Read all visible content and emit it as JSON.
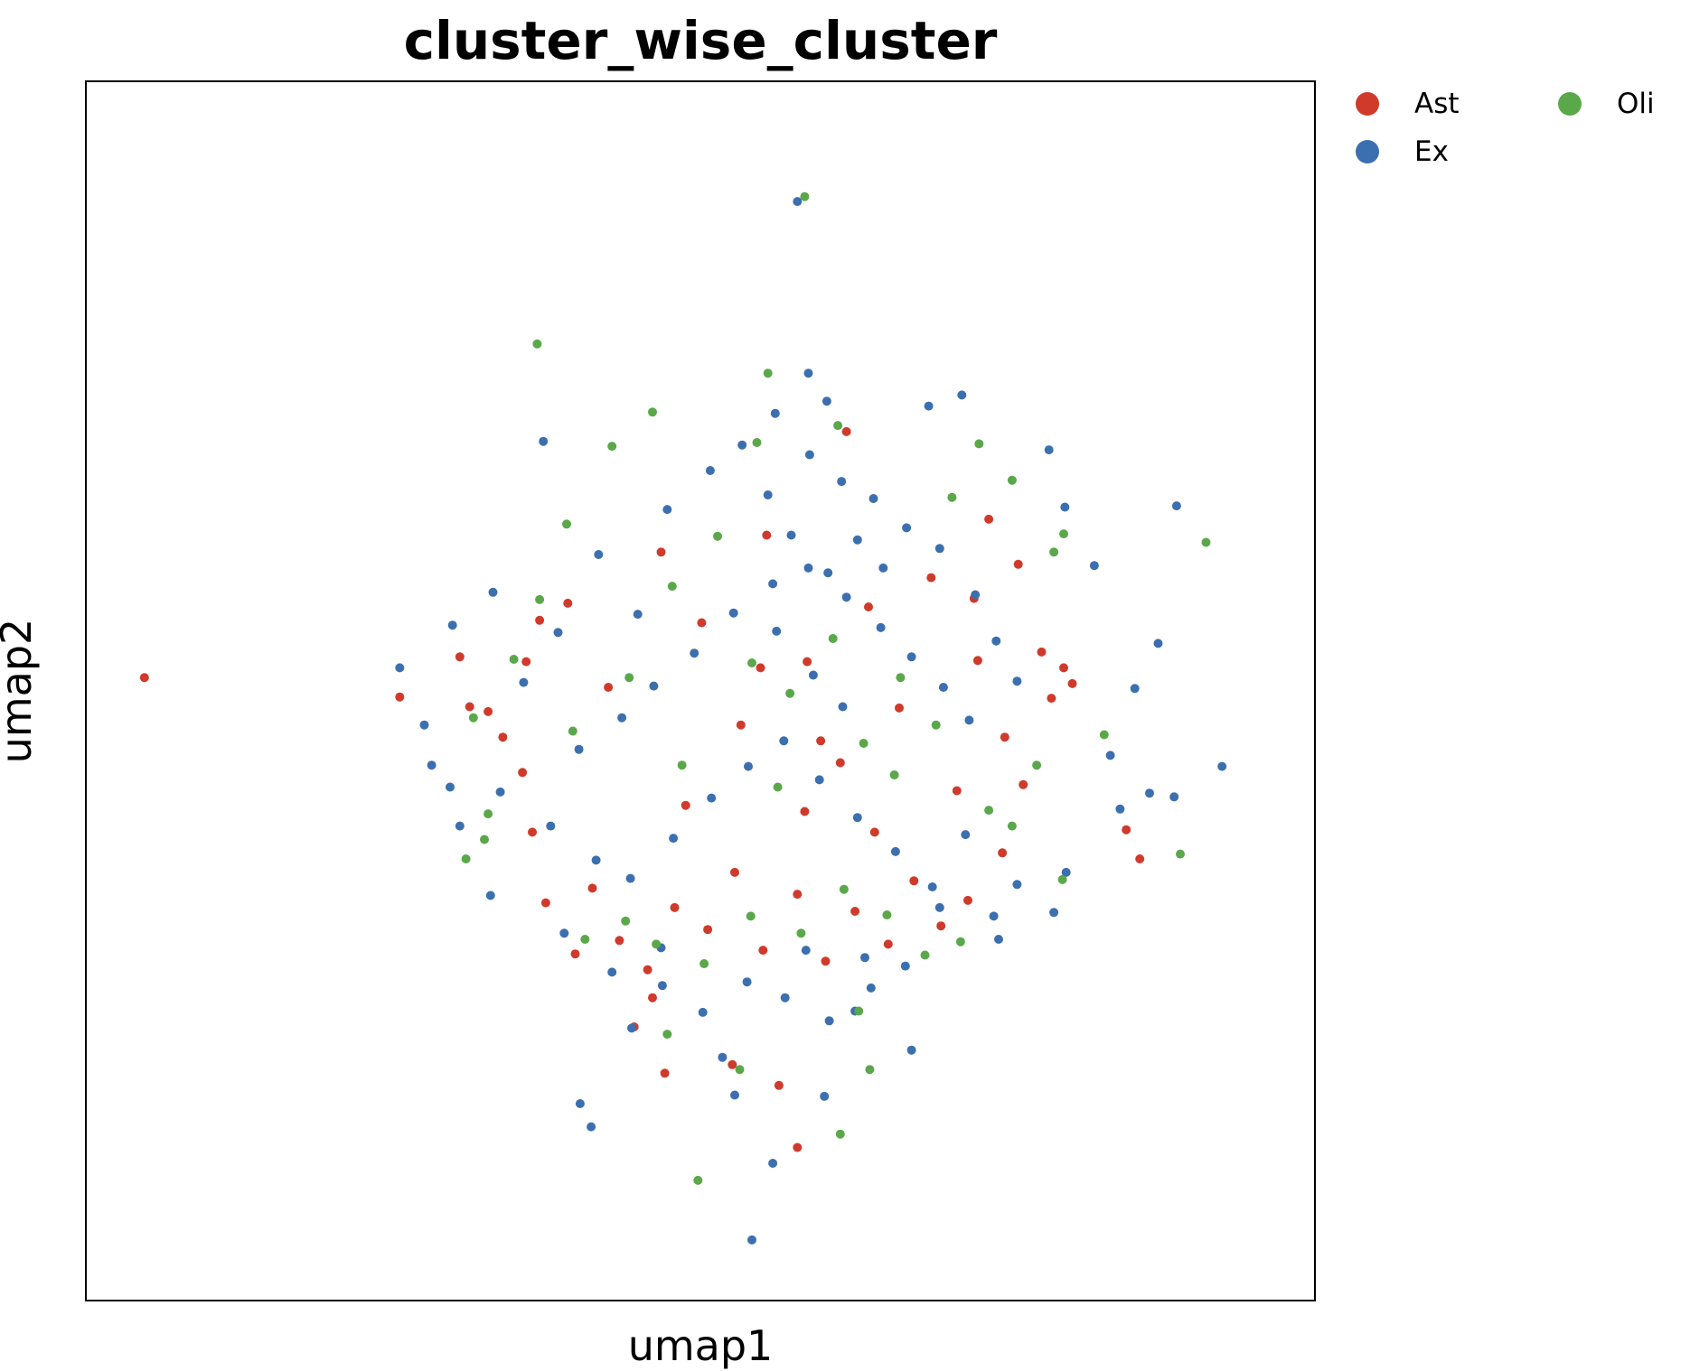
{
  "chart_data": {
    "type": "scatter",
    "title": "cluster_wise_cluster",
    "xlabel": "umap1",
    "ylabel": "umap2",
    "xlim": [
      0,
      100
    ],
    "ylim": [
      0,
      100
    ],
    "grid": false,
    "legend": {
      "placement": "outside-top-right",
      "columns": 2,
      "entries": [
        {
          "name": "Ast",
          "color": "#d03a2b"
        },
        {
          "name": "Ex",
          "color": "#3c6fb0"
        },
        {
          "name": "Oli",
          "color": "#5aa84a"
        }
      ]
    },
    "series": [
      {
        "name": "Ast",
        "color": "#d03a2b",
        "points": [
          [
            4.7,
            51.1
          ],
          [
            25.5,
            49.5
          ],
          [
            30.4,
            52.8
          ],
          [
            32.7,
            48.3
          ],
          [
            35.8,
            52.4
          ],
          [
            39.2,
            57.2
          ],
          [
            42.5,
            50.3
          ],
          [
            46.8,
            61.4
          ],
          [
            50.1,
            55.6
          ],
          [
            53.3,
            47.2
          ],
          [
            55.4,
            62.8
          ],
          [
            58.7,
            52.4
          ],
          [
            61.4,
            44.1
          ],
          [
            63.7,
            56.9
          ],
          [
            66.2,
            48.6
          ],
          [
            68.8,
            59.3
          ],
          [
            70.9,
            41.8
          ],
          [
            72.6,
            52.5
          ],
          [
            74.8,
            46.2
          ],
          [
            37.4,
            32.6
          ],
          [
            39.8,
            28.4
          ],
          [
            41.2,
            33.8
          ],
          [
            43.4,
            29.5
          ],
          [
            45.7,
            27.1
          ],
          [
            47.9,
            32.2
          ],
          [
            50.6,
            30.4
          ],
          [
            52.8,
            35.1
          ],
          [
            55.1,
            28.7
          ],
          [
            57.9,
            33.3
          ],
          [
            60.2,
            27.8
          ],
          [
            62.6,
            31.9
          ],
          [
            65.3,
            29.2
          ],
          [
            67.4,
            34.4
          ],
          [
            69.6,
            30.7
          ],
          [
            71.8,
            32.8
          ],
          [
            74.6,
            36.7
          ],
          [
            76.3,
            42.3
          ],
          [
            77.8,
            53.2
          ],
          [
            79.6,
            51.9
          ],
          [
            80.3,
            50.6
          ],
          [
            31.2,
            48.7
          ],
          [
            36.9,
            55.8
          ],
          [
            48.8,
            40.6
          ],
          [
            58.5,
            40.1
          ],
          [
            64.2,
            38.4
          ],
          [
            44.6,
            22.4
          ],
          [
            46.1,
            24.8
          ],
          [
            52.6,
            19.3
          ],
          [
            56.4,
            17.6
          ],
          [
            57.9,
            12.5
          ],
          [
            85.8,
            36.2
          ],
          [
            84.7,
            38.6
          ],
          [
            47.1,
            18.6
          ],
          [
            36.3,
            38.4
          ],
          [
            73.5,
            64.1
          ],
          [
            61.9,
            71.3
          ],
          [
            72.3,
            57.6
          ],
          [
            75.9,
            60.4
          ],
          [
            78.6,
            49.4
          ],
          [
            35.5,
            43.3
          ],
          [
            33.9,
            46.2
          ],
          [
            54.9,
            51.9
          ],
          [
            59.8,
            45.9
          ]
        ]
      },
      {
        "name": "Ex",
        "color": "#3c6fb0",
        "points": [
          [
            57.9,
            90.2
          ],
          [
            37.2,
            70.5
          ],
          [
            58.8,
            76.1
          ],
          [
            60.3,
            73.8
          ],
          [
            71.3,
            74.3
          ],
          [
            68.6,
            73.4
          ],
          [
            78.4,
            69.8
          ],
          [
            79.7,
            65.1
          ],
          [
            82.1,
            60.3
          ],
          [
            85.4,
            50.2
          ],
          [
            88.6,
            41.3
          ],
          [
            92.5,
            43.8
          ],
          [
            87.3,
            53.9
          ],
          [
            25.5,
            51.9
          ],
          [
            27.5,
            47.2
          ],
          [
            29.8,
            55.4
          ],
          [
            33.1,
            58.1
          ],
          [
            35.6,
            50.7
          ],
          [
            38.4,
            54.8
          ],
          [
            41.7,
            61.2
          ],
          [
            44.9,
            56.3
          ],
          [
            47.3,
            64.9
          ],
          [
            50.8,
            68.1
          ],
          [
            53.4,
            70.2
          ],
          [
            56.1,
            72.8
          ],
          [
            58.9,
            69.4
          ],
          [
            61.5,
            67.2
          ],
          [
            64.1,
            65.8
          ],
          [
            66.8,
            63.4
          ],
          [
            69.5,
            61.7
          ],
          [
            72.4,
            57.9
          ],
          [
            74.1,
            54.1
          ],
          [
            75.8,
            50.8
          ],
          [
            40.1,
            45.2
          ],
          [
            43.6,
            47.8
          ],
          [
            46.2,
            50.4
          ],
          [
            49.5,
            53.1
          ],
          [
            52.7,
            56.4
          ],
          [
            55.9,
            58.8
          ],
          [
            58.8,
            60.1
          ],
          [
            61.9,
            57.7
          ],
          [
            64.7,
            55.2
          ],
          [
            67.2,
            52.8
          ],
          [
            69.8,
            50.3
          ],
          [
            71.9,
            47.6
          ],
          [
            37.8,
            38.9
          ],
          [
            41.5,
            36.1
          ],
          [
            44.3,
            34.6
          ],
          [
            47.8,
            37.9
          ],
          [
            50.9,
            41.2
          ],
          [
            53.9,
            43.8
          ],
          [
            56.8,
            45.9
          ],
          [
            59.7,
            42.7
          ],
          [
            62.8,
            39.6
          ],
          [
            65.9,
            36.8
          ],
          [
            68.9,
            33.9
          ],
          [
            71.6,
            38.2
          ],
          [
            73.9,
            31.5
          ],
          [
            38.9,
            30.1
          ],
          [
            42.8,
            26.9
          ],
          [
            46.9,
            25.8
          ],
          [
            50.2,
            23.6
          ],
          [
            53.8,
            26.1
          ],
          [
            56.9,
            24.8
          ],
          [
            60.5,
            22.9
          ],
          [
            63.9,
            25.6
          ],
          [
            66.7,
            27.4
          ],
          [
            28.1,
            43.9
          ],
          [
            29.6,
            42.1
          ],
          [
            54.2,
            4.9
          ],
          [
            51.8,
            19.9
          ],
          [
            52.8,
            16.8
          ],
          [
            55.9,
            11.2
          ],
          [
            41.1,
            14.2
          ],
          [
            40.2,
            16.1
          ],
          [
            44.4,
            22.3
          ],
          [
            46.8,
            28.9
          ],
          [
            58.6,
            28.7
          ],
          [
            63.4,
            28.1
          ],
          [
            69.5,
            32.2
          ],
          [
            74.3,
            29.6
          ],
          [
            75.8,
            34.1
          ],
          [
            32.9,
            33.2
          ],
          [
            30.4,
            38.9
          ],
          [
            33.7,
            41.7
          ],
          [
            84.2,
            40.3
          ],
          [
            86.6,
            41.6
          ],
          [
            83.4,
            44.7
          ],
          [
            88.8,
            65.2
          ],
          [
            79.8,
            35.1
          ],
          [
            78.8,
            31.8
          ],
          [
            67.2,
            20.5
          ],
          [
            60.1,
            16.7
          ],
          [
            62.6,
            23.7
          ],
          [
            55.5,
            66.1
          ],
          [
            57.4,
            62.8
          ],
          [
            60.4,
            59.7
          ],
          [
            62.8,
            62.4
          ],
          [
            64.9,
            60.1
          ],
          [
            56.2,
            54.9
          ],
          [
            59.2,
            51.3
          ],
          [
            61.6,
            48.7
          ]
        ]
      },
      {
        "name": "Oli",
        "color": "#5aa84a",
        "points": [
          [
            58.5,
            90.6
          ],
          [
            36.7,
            78.5
          ],
          [
            42.8,
            70.1
          ],
          [
            46.1,
            72.9
          ],
          [
            54.6,
            70.4
          ],
          [
            55.5,
            76.1
          ],
          [
            61.2,
            71.8
          ],
          [
            75.4,
            67.3
          ],
          [
            78.8,
            61.4
          ],
          [
            79.6,
            62.9
          ],
          [
            91.2,
            62.2
          ],
          [
            77.4,
            43.9
          ],
          [
            79.5,
            34.5
          ],
          [
            82.9,
            46.4
          ],
          [
            31.5,
            47.8
          ],
          [
            34.8,
            52.6
          ],
          [
            39.6,
            46.7
          ],
          [
            44.2,
            51.1
          ],
          [
            47.7,
            58.6
          ],
          [
            51.4,
            62.7
          ],
          [
            54.2,
            52.3
          ],
          [
            57.3,
            49.8
          ],
          [
            60.8,
            54.3
          ],
          [
            63.3,
            45.7
          ],
          [
            66.3,
            51.1
          ],
          [
            69.2,
            47.2
          ],
          [
            40.6,
            29.6
          ],
          [
            43.9,
            31.1
          ],
          [
            46.4,
            29.2
          ],
          [
            50.3,
            27.6
          ],
          [
            54.1,
            31.5
          ],
          [
            58.2,
            30.1
          ],
          [
            61.7,
            33.7
          ],
          [
            65.2,
            31.6
          ],
          [
            68.3,
            28.3
          ],
          [
            71.2,
            29.4
          ],
          [
            47.3,
            21.8
          ],
          [
            53.2,
            18.9
          ],
          [
            61.4,
            13.6
          ],
          [
            62.9,
            23.7
          ],
          [
            63.8,
            18.9
          ],
          [
            49.8,
            9.8
          ],
          [
            32.4,
            37.8
          ],
          [
            30.9,
            36.2
          ],
          [
            32.7,
            39.9
          ],
          [
            89.1,
            36.6
          ],
          [
            39.1,
            63.7
          ],
          [
            48.5,
            43.9
          ],
          [
            56.3,
            42.1
          ],
          [
            65.8,
            43.1
          ],
          [
            73.5,
            40.2
          ],
          [
            75.4,
            38.9
          ],
          [
            36.9,
            57.5
          ],
          [
            72.7,
            70.3
          ],
          [
            70.5,
            65.9
          ]
        ]
      }
    ]
  }
}
